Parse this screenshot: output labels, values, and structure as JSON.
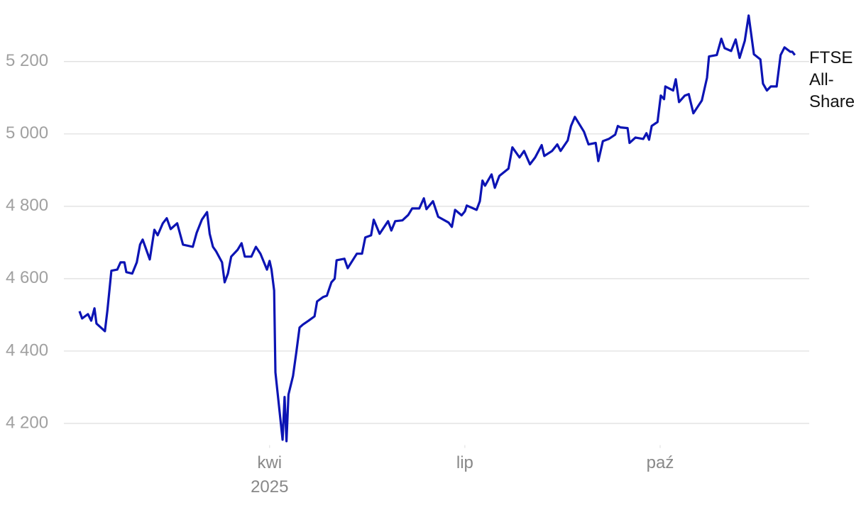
{
  "chart_data": {
    "type": "line",
    "x": [
      1.08,
      1.12,
      1.21,
      1.26,
      1.31,
      1.34,
      1.47,
      1.51,
      1.57,
      1.66,
      1.71,
      1.77,
      1.8,
      1.89,
      1.96,
      2.01,
      2.05,
      2.16,
      2.23,
      2.28,
      2.36,
      2.42,
      2.48,
      2.58,
      2.67,
      2.82,
      2.88,
      2.96,
      3.04,
      3.08,
      3.13,
      3.18,
      3.27,
      3.31,
      3.36,
      3.41,
      3.51,
      3.57,
      3.62,
      3.72,
      3.79,
      3.86,
      3.96,
      4.0,
      4.03,
      4.07,
      4.09,
      4.2,
      4.23,
      4.26,
      4.29,
      4.36,
      4.41,
      4.46,
      4.51,
      4.6,
      4.69,
      4.73,
      4.82,
      4.88,
      4.95,
      5.0,
      5.03,
      5.15,
      5.2,
      5.34,
      5.42,
      5.47,
      5.56,
      5.6,
      5.69,
      5.82,
      5.87,
      5.93,
      6.04,
      6.13,
      6.19,
      6.3,
      6.37,
      6.41,
      6.51,
      6.59,
      6.75,
      6.8,
      6.85,
      6.95,
      7.0,
      7.03,
      7.18,
      7.23,
      7.27,
      7.31,
      7.41,
      7.46,
      7.53,
      7.67,
      7.73,
      7.84,
      7.91,
      8.0,
      8.08,
      8.18,
      8.22,
      8.34,
      8.42,
      8.47,
      8.58,
      8.63,
      8.69,
      8.83,
      8.9,
      9.01,
      9.05,
      9.12,
      9.21,
      9.31,
      9.35,
      9.39,
      9.5,
      9.53,
      9.62,
      9.74,
      9.79,
      9.83,
      9.87,
      9.96,
      10.01,
      10.06,
      10.08,
      10.2,
      10.24,
      10.29,
      10.38,
      10.44,
      10.51,
      10.64,
      10.72,
      10.75,
      10.87,
      10.94,
      10.99,
      11.09,
      11.16,
      11.22,
      11.3,
      11.36,
      11.44,
      11.54,
      11.58,
      11.64,
      11.7,
      11.79,
      11.85,
      11.91,
      12.0,
      12.03,
      12.07
    ],
    "series": [
      {
        "name": "FTSE All-Share",
        "color": "#0c14b4",
        "values": [
          4510,
          4490,
          4502,
          4484,
          4518,
          4476,
          4455,
          4514,
          4622,
          4625,
          4645,
          4645,
          4618,
          4614,
          4645,
          4694,
          4708,
          4653,
          4735,
          4720,
          4753,
          4767,
          4737,
          4753,
          4694,
          4688,
          4727,
          4763,
          4784,
          4724,
          4688,
          4675,
          4645,
          4590,
          4614,
          4661,
          4680,
          4698,
          4661,
          4661,
          4688,
          4669,
          4625,
          4649,
          4625,
          4567,
          4341,
          4155,
          4273,
          4151,
          4280,
          4331,
          4396,
          4465,
          4473,
          4484,
          4496,
          4537,
          4549,
          4553,
          4590,
          4600,
          4651,
          4655,
          4629,
          4669,
          4669,
          4714,
          4720,
          4763,
          4724,
          4759,
          4733,
          4759,
          4761,
          4776,
          4794,
          4794,
          4822,
          4792,
          4814,
          4771,
          4755,
          4743,
          4790,
          4775,
          4786,
          4802,
          4790,
          4814,
          4871,
          4857,
          4888,
          4851,
          4884,
          4904,
          4963,
          4935,
          4953,
          4916,
          4935,
          4969,
          4939,
          4953,
          4971,
          4953,
          4982,
          5022,
          5047,
          5006,
          4971,
          4975,
          4925,
          4980,
          4986,
          4998,
          5022,
          5018,
          5016,
          4975,
          4990,
          4986,
          5002,
          4984,
          5022,
          5033,
          5106,
          5096,
          5131,
          5120,
          5151,
          5088,
          5106,
          5110,
          5057,
          5092,
          5155,
          5214,
          5218,
          5263,
          5237,
          5229,
          5261,
          5210,
          5257,
          5327,
          5220,
          5206,
          5139,
          5120,
          5131,
          5131,
          5218,
          5239,
          5227,
          5227,
          5218
        ]
      }
    ],
    "xlim": [
      0.84,
      12.29
    ],
    "xticks": [
      {
        "value": 4,
        "label": "kwi\n2025"
      },
      {
        "value": 7,
        "label": "lip"
      },
      {
        "value": 10,
        "label": "paź"
      }
    ],
    "ylim": [
      4140,
      5370
    ],
    "yticks": [
      {
        "value": 4200,
        "label": "4 200"
      },
      {
        "value": 4400,
        "label": "4 400"
      },
      {
        "value": 4600,
        "label": "4 600"
      },
      {
        "value": 4800,
        "label": "4 800"
      },
      {
        "value": 5000,
        "label": "5 000"
      },
      {
        "value": 5200,
        "label": "5 200"
      }
    ],
    "grid": true
  }
}
